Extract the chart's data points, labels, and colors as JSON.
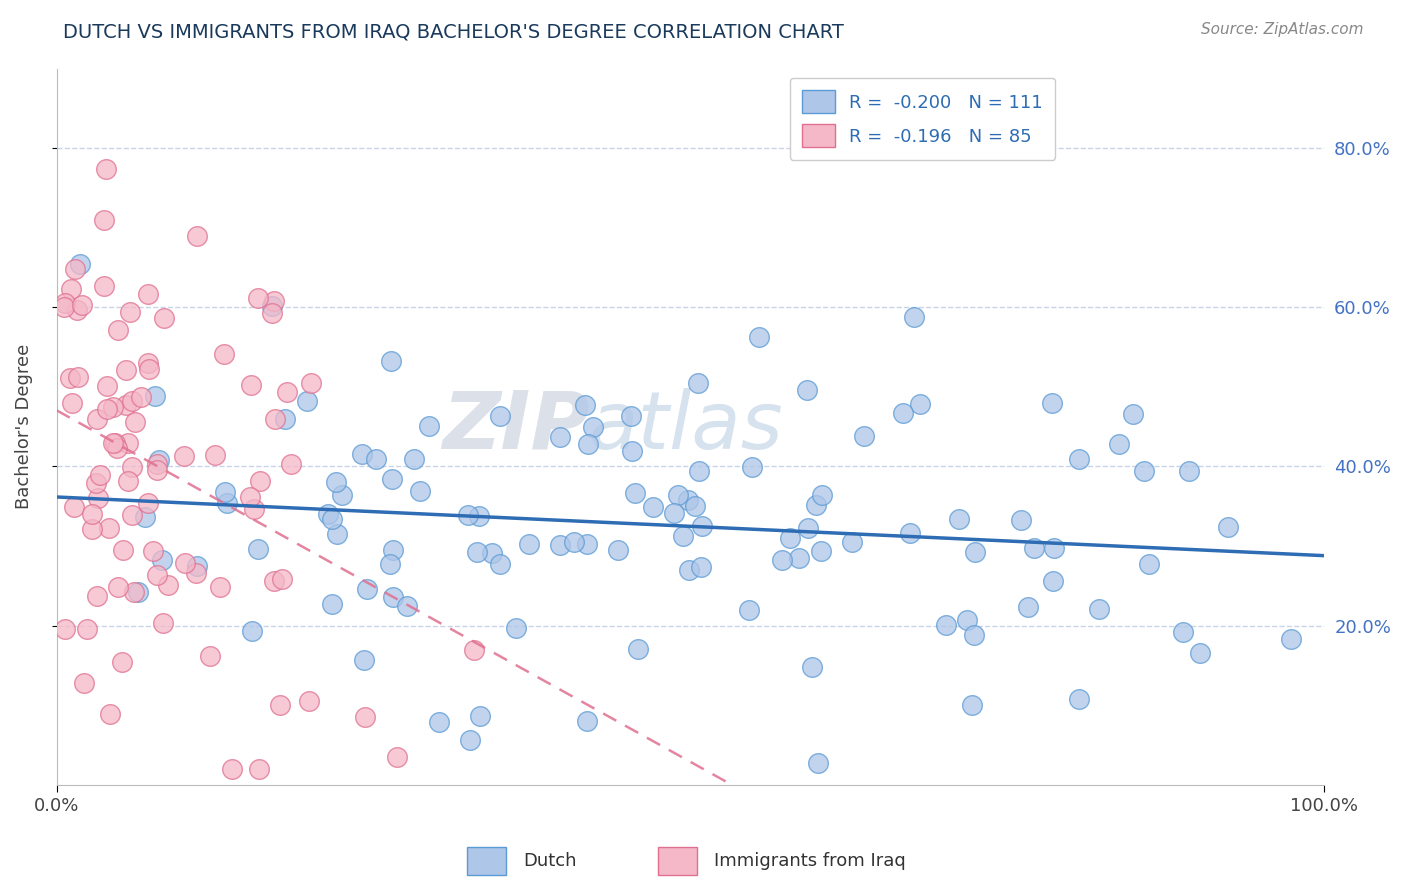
{
  "title": "DUTCH VS IMMIGRANTS FROM IRAQ BACHELOR'S DEGREE CORRELATION CHART",
  "source_text": "Source: ZipAtlas.com",
  "ylabel": "Bachelor's Degree",
  "xlim": [
    0,
    1
  ],
  "ylim": [
    0,
    0.9
  ],
  "dutch_color": "#aec6e8",
  "dutch_edge_color": "#5b9bd5",
  "iraq_color": "#f4b8c8",
  "iraq_edge_color": "#e07090",
  "dutch_line_color": "#2e6db4",
  "iraq_line_color": "#e07090",
  "legend_r_dutch": "R =  -0.200",
  "legend_n_dutch": "N = 111",
  "legend_r_iraq": "R =  -0.196",
  "legend_n_iraq": "N = 85",
  "watermark": "ZIPatlas",
  "background_color": "#ffffff",
  "grid_color": "#c8d4e8",
  "title_color": "#1a3a5c",
  "source_color": "#888888",
  "dutch_n": 111,
  "iraq_n": 85,
  "dutch_r": -0.2,
  "iraq_r": -0.196,
  "seed": 42
}
